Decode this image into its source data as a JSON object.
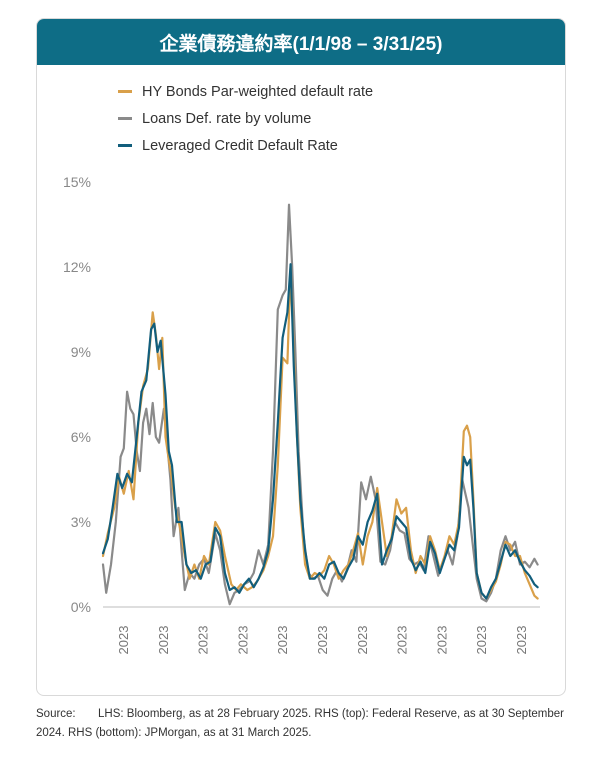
{
  "header": {
    "title": "企業債務違約率(1/1/98 – 3/31/25)"
  },
  "source": {
    "label": "Source:",
    "text": "LHS: Bloomberg, as at 28 February 2025. RHS (top): Federal Reserve, as at 30 September 2024. RHS (bottom): JPMorgan, as at 31 March 2025."
  },
  "chart_data": {
    "type": "line",
    "title": "企業債務違約率(1/1/98 – 3/31/25)",
    "xlabel": "",
    "ylabel": "",
    "ylim": [
      0,
      15
    ],
    "yticks": [
      "0%",
      "3%",
      "6%",
      "9%",
      "12%",
      "15%"
    ],
    "xticks": [
      "2023",
      "2023",
      "2023",
      "2023",
      "2023",
      "2023",
      "2023",
      "2023",
      "2023",
      "2023",
      "2023"
    ],
    "grid": false,
    "legend_position": "top-left",
    "x_start": 1998.0,
    "x_end": 2025.25,
    "series": [
      {
        "name": "HY Bonds Par-weighted default rate",
        "color": "#d9a04a",
        "points": [
          [
            1998.0,
            1.8
          ],
          [
            1998.3,
            2.6
          ],
          [
            1998.7,
            3.5
          ],
          [
            1999.0,
            4.6
          ],
          [
            1999.3,
            4.0
          ],
          [
            1999.6,
            4.8
          ],
          [
            1999.9,
            3.8
          ],
          [
            2000.2,
            6.5
          ],
          [
            2000.5,
            7.8
          ],
          [
            2000.8,
            8.4
          ],
          [
            2001.1,
            10.4
          ],
          [
            2001.3,
            9.6
          ],
          [
            2001.5,
            8.4
          ],
          [
            2001.7,
            9.5
          ],
          [
            2001.9,
            6.0
          ],
          [
            2002.1,
            5.2
          ],
          [
            2002.3,
            4.5
          ],
          [
            2002.5,
            3.5
          ],
          [
            2002.8,
            2.8
          ],
          [
            2003.1,
            1.8
          ],
          [
            2003.4,
            1.0
          ],
          [
            2003.7,
            1.5
          ],
          [
            2004.0,
            1.0
          ],
          [
            2004.3,
            1.8
          ],
          [
            2004.6,
            1.5
          ],
          [
            2005.0,
            3.0
          ],
          [
            2005.3,
            2.7
          ],
          [
            2005.6,
            1.8
          ],
          [
            2006.0,
            0.8
          ],
          [
            2006.3,
            0.6
          ],
          [
            2006.6,
            0.8
          ],
          [
            2007.0,
            0.6
          ],
          [
            2007.3,
            0.7
          ],
          [
            2007.6,
            0.9
          ],
          [
            2008.0,
            1.3
          ],
          [
            2008.3,
            1.8
          ],
          [
            2008.6,
            2.5
          ],
          [
            2008.9,
            5.0
          ],
          [
            2009.2,
            8.8
          ],
          [
            2009.5,
            8.6
          ],
          [
            2009.7,
            12.0
          ],
          [
            2009.9,
            9.0
          ],
          [
            2010.1,
            6.0
          ],
          [
            2010.3,
            3.5
          ],
          [
            2010.6,
            1.5
          ],
          [
            2010.9,
            1.0
          ],
          [
            2011.2,
            1.2
          ],
          [
            2011.5,
            1.1
          ],
          [
            2011.8,
            1.3
          ],
          [
            2012.1,
            1.8
          ],
          [
            2012.4,
            1.5
          ],
          [
            2012.7,
            1.0
          ],
          [
            2013.0,
            1.3
          ],
          [
            2013.3,
            1.5
          ],
          [
            2013.6,
            2.0
          ],
          [
            2013.9,
            2.6
          ],
          [
            2014.2,
            1.5
          ],
          [
            2014.5,
            2.5
          ],
          [
            2014.8,
            3.0
          ],
          [
            2015.1,
            4.2
          ],
          [
            2015.4,
            3.0
          ],
          [
            2015.7,
            1.8
          ],
          [
            2016.0,
            2.5
          ],
          [
            2016.3,
            3.8
          ],
          [
            2016.6,
            3.3
          ],
          [
            2016.9,
            3.5
          ],
          [
            2017.2,
            2.0
          ],
          [
            2017.5,
            1.2
          ],
          [
            2017.8,
            1.8
          ],
          [
            2018.1,
            1.5
          ],
          [
            2018.4,
            2.5
          ],
          [
            2018.7,
            2.0
          ],
          [
            2019.0,
            1.3
          ],
          [
            2019.3,
            1.8
          ],
          [
            2019.6,
            2.5
          ],
          [
            2019.9,
            2.2
          ],
          [
            2020.2,
            3.0
          ],
          [
            2020.5,
            6.2
          ],
          [
            2020.7,
            6.4
          ],
          [
            2020.9,
            6.0
          ],
          [
            2021.1,
            3.8
          ],
          [
            2021.3,
            1.2
          ],
          [
            2021.6,
            0.5
          ],
          [
            2021.9,
            0.3
          ],
          [
            2022.2,
            0.6
          ],
          [
            2022.5,
            0.9
          ],
          [
            2022.8,
            1.5
          ],
          [
            2023.1,
            2.3
          ],
          [
            2023.4,
            2.2
          ],
          [
            2023.7,
            1.8
          ],
          [
            2024.0,
            1.8
          ],
          [
            2024.3,
            1.2
          ],
          [
            2024.6,
            0.8
          ],
          [
            2024.9,
            0.4
          ],
          [
            2025.1,
            0.3
          ]
        ]
      },
      {
        "name": "Loans Def. rate by volume",
        "color": "#8a8a8a",
        "points": [
          [
            1998.0,
            1.5
          ],
          [
            1998.2,
            0.5
          ],
          [
            1998.5,
            1.5
          ],
          [
            1998.8,
            3.0
          ],
          [
            1999.1,
            5.3
          ],
          [
            1999.3,
            5.6
          ],
          [
            1999.5,
            7.6
          ],
          [
            1999.7,
            7.0
          ],
          [
            1999.9,
            6.8
          ],
          [
            2000.1,
            5.5
          ],
          [
            2000.3,
            4.8
          ],
          [
            2000.5,
            6.5
          ],
          [
            2000.7,
            7.0
          ],
          [
            2000.9,
            6.1
          ],
          [
            2001.1,
            7.2
          ],
          [
            2001.3,
            6.0
          ],
          [
            2001.5,
            5.8
          ],
          [
            2001.8,
            7.0
          ],
          [
            2002.0,
            5.8
          ],
          [
            2002.2,
            4.5
          ],
          [
            2002.4,
            2.5
          ],
          [
            2002.7,
            3.5
          ],
          [
            2002.9,
            2.0
          ],
          [
            2003.1,
            0.6
          ],
          [
            2003.4,
            1.2
          ],
          [
            2003.7,
            1.0
          ],
          [
            2004.0,
            1.5
          ],
          [
            2004.3,
            1.7
          ],
          [
            2004.6,
            1.2
          ],
          [
            2005.0,
            2.6
          ],
          [
            2005.3,
            2.0
          ],
          [
            2005.6,
            0.8
          ],
          [
            2005.9,
            0.1
          ],
          [
            2006.2,
            0.5
          ],
          [
            2006.5,
            0.6
          ],
          [
            2006.8,
            0.8
          ],
          [
            2007.1,
            0.9
          ],
          [
            2007.4,
            1.2
          ],
          [
            2007.7,
            2.0
          ],
          [
            2008.0,
            1.5
          ],
          [
            2008.3,
            2.2
          ],
          [
            2008.6,
            5.5
          ],
          [
            2008.9,
            10.5
          ],
          [
            2009.2,
            11.0
          ],
          [
            2009.4,
            11.2
          ],
          [
            2009.6,
            14.2
          ],
          [
            2009.8,
            12.0
          ],
          [
            2010.0,
            9.0
          ],
          [
            2010.2,
            5.5
          ],
          [
            2010.5,
            2.5
          ],
          [
            2010.8,
            1.2
          ],
          [
            2011.1,
            1.0
          ],
          [
            2011.4,
            1.1
          ],
          [
            2011.7,
            0.6
          ],
          [
            2012.0,
            0.4
          ],
          [
            2012.3,
            1.0
          ],
          [
            2012.6,
            1.3
          ],
          [
            2012.9,
            0.9
          ],
          [
            2013.2,
            1.3
          ],
          [
            2013.5,
            2.0
          ],
          [
            2013.8,
            1.6
          ],
          [
            2014.1,
            4.4
          ],
          [
            2014.4,
            3.8
          ],
          [
            2014.7,
            4.6
          ],
          [
            2015.0,
            3.8
          ],
          [
            2015.3,
            1.6
          ],
          [
            2015.6,
            1.5
          ],
          [
            2015.9,
            2.0
          ],
          [
            2016.2,
            3.0
          ],
          [
            2016.5,
            2.7
          ],
          [
            2016.8,
            2.6
          ],
          [
            2017.1,
            1.7
          ],
          [
            2017.4,
            1.5
          ],
          [
            2017.7,
            1.6
          ],
          [
            2018.0,
            1.3
          ],
          [
            2018.3,
            2.5
          ],
          [
            2018.6,
            1.8
          ],
          [
            2018.9,
            1.1
          ],
          [
            2019.2,
            1.6
          ],
          [
            2019.5,
            2.0
          ],
          [
            2019.8,
            1.5
          ],
          [
            2020.1,
            2.5
          ],
          [
            2020.4,
            4.5
          ],
          [
            2020.6,
            4.0
          ],
          [
            2020.8,
            3.5
          ],
          [
            2021.0,
            2.5
          ],
          [
            2021.3,
            1.0
          ],
          [
            2021.6,
            0.3
          ],
          [
            2021.9,
            0.2
          ],
          [
            2022.2,
            0.5
          ],
          [
            2022.5,
            1.0
          ],
          [
            2022.8,
            2.0
          ],
          [
            2023.1,
            2.5
          ],
          [
            2023.4,
            2.0
          ],
          [
            2023.7,
            2.3
          ],
          [
            2024.0,
            1.5
          ],
          [
            2024.3,
            1.6
          ],
          [
            2024.6,
            1.4
          ],
          [
            2024.9,
            1.7
          ],
          [
            2025.1,
            1.5
          ]
        ]
      },
      {
        "name": "Leveraged Credit Default Rate",
        "color": "#125e7c",
        "points": [
          [
            1998.0,
            1.9
          ],
          [
            1998.3,
            2.4
          ],
          [
            1998.6,
            3.5
          ],
          [
            1998.9,
            4.7
          ],
          [
            1999.2,
            4.2
          ],
          [
            1999.5,
            4.7
          ],
          [
            1999.8,
            4.4
          ],
          [
            2000.1,
            6.0
          ],
          [
            2000.4,
            7.6
          ],
          [
            2000.7,
            8.0
          ],
          [
            2001.0,
            9.8
          ],
          [
            2001.2,
            10.0
          ],
          [
            2001.4,
            9.0
          ],
          [
            2001.6,
            9.4
          ],
          [
            2001.9,
            7.5
          ],
          [
            2002.1,
            5.5
          ],
          [
            2002.3,
            5.0
          ],
          [
            2002.6,
            3.0
          ],
          [
            2002.9,
            3.0
          ],
          [
            2003.2,
            1.5
          ],
          [
            2003.5,
            1.2
          ],
          [
            2003.8,
            1.3
          ],
          [
            2004.1,
            1.0
          ],
          [
            2004.4,
            1.5
          ],
          [
            2004.7,
            1.6
          ],
          [
            2005.0,
            2.8
          ],
          [
            2005.3,
            2.5
          ],
          [
            2005.6,
            1.2
          ],
          [
            2005.9,
            0.6
          ],
          [
            2006.2,
            0.7
          ],
          [
            2006.5,
            0.5
          ],
          [
            2006.8,
            0.8
          ],
          [
            2007.1,
            1.0
          ],
          [
            2007.4,
            0.7
          ],
          [
            2007.7,
            1.0
          ],
          [
            2008.0,
            1.4
          ],
          [
            2008.3,
            2.0
          ],
          [
            2008.6,
            3.8
          ],
          [
            2008.9,
            6.5
          ],
          [
            2009.2,
            9.5
          ],
          [
            2009.5,
            10.4
          ],
          [
            2009.7,
            12.1
          ],
          [
            2009.9,
            8.5
          ],
          [
            2010.1,
            6.0
          ],
          [
            2010.3,
            3.8
          ],
          [
            2010.6,
            2.0
          ],
          [
            2010.9,
            1.0
          ],
          [
            2011.2,
            1.0
          ],
          [
            2011.5,
            1.2
          ],
          [
            2011.8,
            1.0
          ],
          [
            2012.1,
            1.5
          ],
          [
            2012.4,
            1.6
          ],
          [
            2012.7,
            1.2
          ],
          [
            2013.0,
            1.0
          ],
          [
            2013.3,
            1.4
          ],
          [
            2013.6,
            1.7
          ],
          [
            2013.9,
            2.5
          ],
          [
            2014.2,
            2.2
          ],
          [
            2014.5,
            3.0
          ],
          [
            2014.8,
            3.4
          ],
          [
            2015.1,
            4.0
          ],
          [
            2015.4,
            1.5
          ],
          [
            2015.7,
            2.0
          ],
          [
            2016.0,
            2.4
          ],
          [
            2016.3,
            3.2
          ],
          [
            2016.6,
            3.0
          ],
          [
            2016.9,
            2.8
          ],
          [
            2017.2,
            1.7
          ],
          [
            2017.5,
            1.3
          ],
          [
            2017.8,
            1.6
          ],
          [
            2018.1,
            1.2
          ],
          [
            2018.4,
            2.3
          ],
          [
            2018.7,
            1.9
          ],
          [
            2019.0,
            1.2
          ],
          [
            2019.3,
            1.7
          ],
          [
            2019.6,
            2.2
          ],
          [
            2019.9,
            2.0
          ],
          [
            2020.2,
            2.8
          ],
          [
            2020.5,
            5.3
          ],
          [
            2020.7,
            5.0
          ],
          [
            2020.9,
            5.2
          ],
          [
            2021.1,
            3.5
          ],
          [
            2021.3,
            1.2
          ],
          [
            2021.6,
            0.5
          ],
          [
            2021.9,
            0.3
          ],
          [
            2022.2,
            0.7
          ],
          [
            2022.5,
            1.0
          ],
          [
            2022.8,
            1.6
          ],
          [
            2023.1,
            2.2
          ],
          [
            2023.4,
            1.8
          ],
          [
            2023.7,
            2.0
          ],
          [
            2024.0,
            1.6
          ],
          [
            2024.3,
            1.3
          ],
          [
            2024.6,
            1.1
          ],
          [
            2024.9,
            0.8
          ],
          [
            2025.1,
            0.7
          ]
        ]
      }
    ]
  }
}
